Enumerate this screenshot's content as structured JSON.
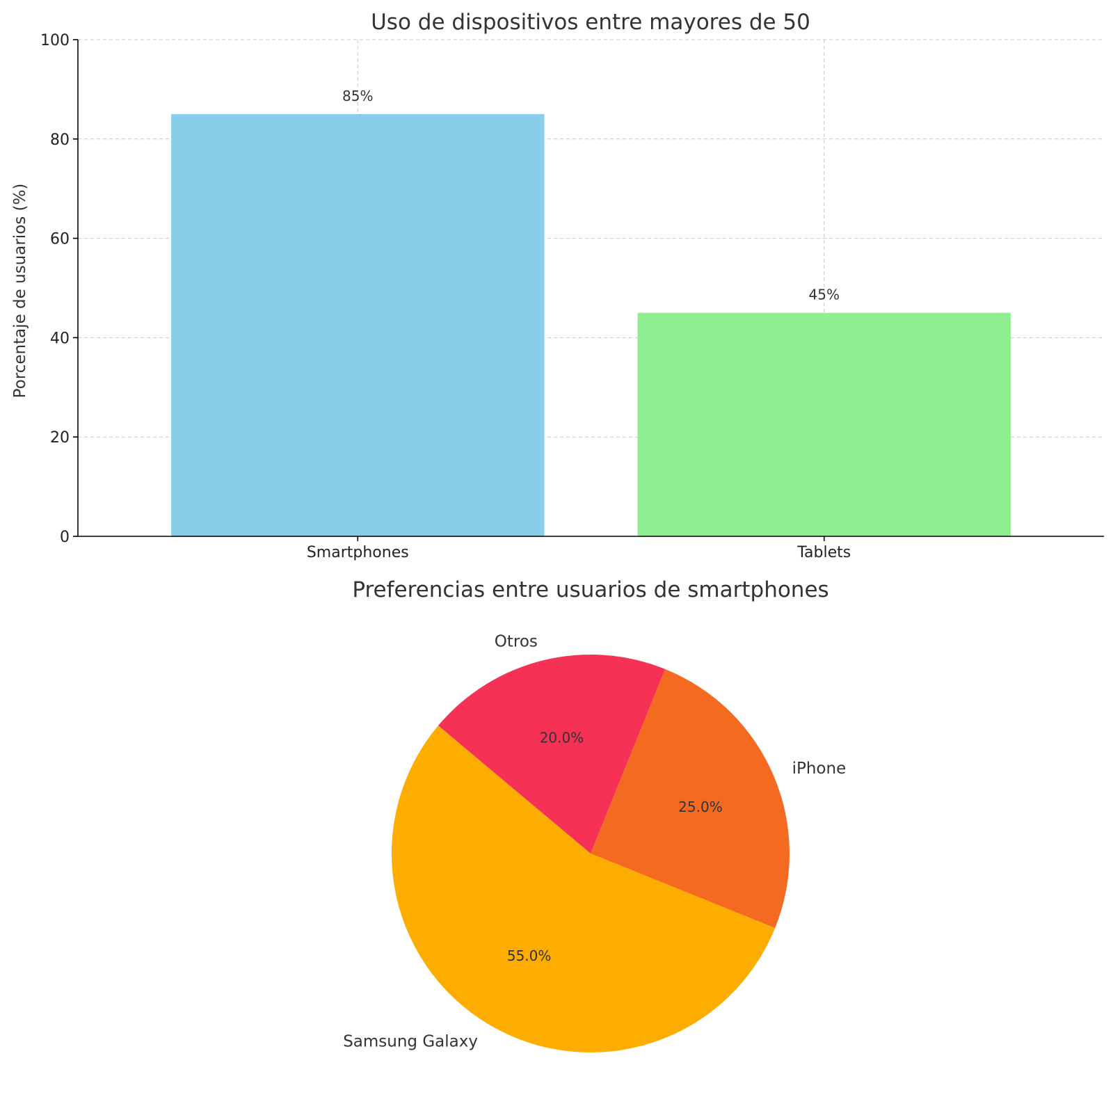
{
  "chart_data": [
    {
      "type": "bar",
      "title": "Uso de dispositivos entre mayores de 50",
      "xlabel": "",
      "ylabel": "Porcentaje de usuarios (%)",
      "ylim": [
        0,
        100
      ],
      "yticks": [
        0,
        20,
        40,
        60,
        80,
        100
      ],
      "grid": true,
      "categories": [
        "Smartphones",
        "Tablets"
      ],
      "values": [
        85,
        45
      ],
      "data_labels": [
        "85%",
        "45%"
      ],
      "colors": [
        "#87ceeb",
        "#90ee90"
      ]
    },
    {
      "type": "pie",
      "title": "Preferencias entre usuarios de smartphones",
      "labels": [
        "iPhone",
        "Otros",
        "Samsung Galaxy"
      ],
      "values": [
        25,
        20,
        55
      ],
      "pct_labels": [
        "25.0%",
        "20.0%",
        "55.0%"
      ],
      "colors": [
        "#f46a21",
        "#f53255",
        "#fcad00"
      ]
    }
  ]
}
